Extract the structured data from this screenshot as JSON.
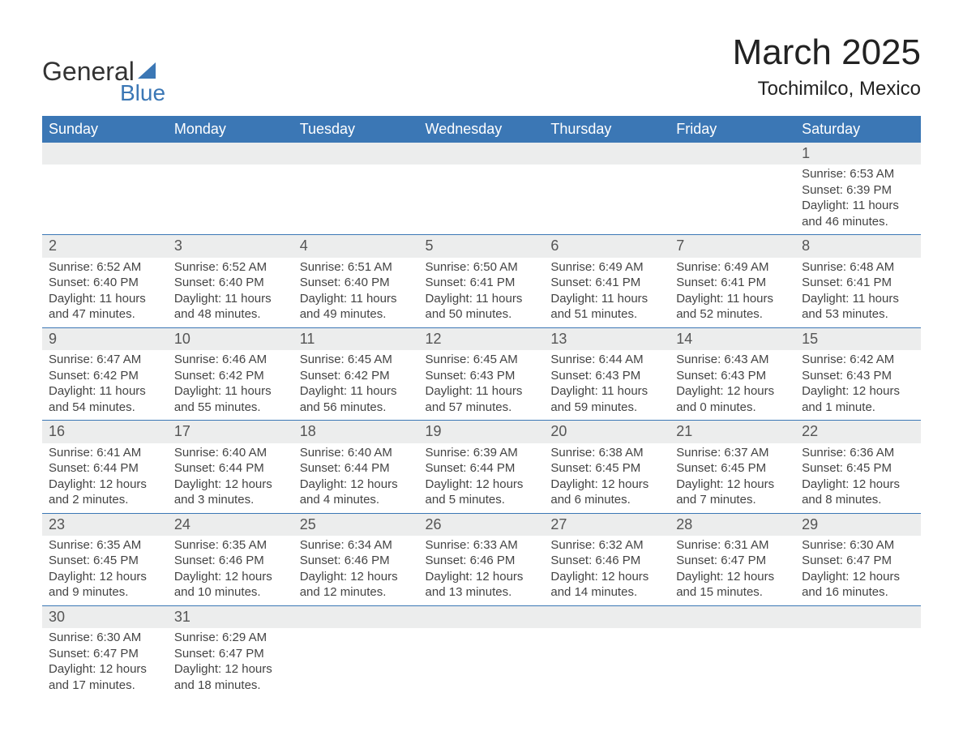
{
  "brand": {
    "word1": "General",
    "word2": "Blue",
    "sail_color": "#3b77b5"
  },
  "title": "March 2025",
  "location": "Tochimilco, Mexico",
  "colors": {
    "header_bg": "#3b77b5",
    "header_text": "#ffffff",
    "daynum_bg": "#eceded",
    "row_border": "#3b77b5",
    "body_text": "#444444",
    "background": "#ffffff"
  },
  "fonts": {
    "title_pt": 44,
    "location_pt": 24,
    "th_pt": 18,
    "body_pt": 15
  },
  "weekdays": [
    "Sunday",
    "Monday",
    "Tuesday",
    "Wednesday",
    "Thursday",
    "Friday",
    "Saturday"
  ],
  "weeks": [
    [
      null,
      null,
      null,
      null,
      null,
      null,
      {
        "n": "1",
        "sr": "Sunrise: 6:53 AM",
        "ss": "Sunset: 6:39 PM",
        "d1": "Daylight: 11 hours",
        "d2": "and 46 minutes."
      }
    ],
    [
      {
        "n": "2",
        "sr": "Sunrise: 6:52 AM",
        "ss": "Sunset: 6:40 PM",
        "d1": "Daylight: 11 hours",
        "d2": "and 47 minutes."
      },
      {
        "n": "3",
        "sr": "Sunrise: 6:52 AM",
        "ss": "Sunset: 6:40 PM",
        "d1": "Daylight: 11 hours",
        "d2": "and 48 minutes."
      },
      {
        "n": "4",
        "sr": "Sunrise: 6:51 AM",
        "ss": "Sunset: 6:40 PM",
        "d1": "Daylight: 11 hours",
        "d2": "and 49 minutes."
      },
      {
        "n": "5",
        "sr": "Sunrise: 6:50 AM",
        "ss": "Sunset: 6:41 PM",
        "d1": "Daylight: 11 hours",
        "d2": "and 50 minutes."
      },
      {
        "n": "6",
        "sr": "Sunrise: 6:49 AM",
        "ss": "Sunset: 6:41 PM",
        "d1": "Daylight: 11 hours",
        "d2": "and 51 minutes."
      },
      {
        "n": "7",
        "sr": "Sunrise: 6:49 AM",
        "ss": "Sunset: 6:41 PM",
        "d1": "Daylight: 11 hours",
        "d2": "and 52 minutes."
      },
      {
        "n": "8",
        "sr": "Sunrise: 6:48 AM",
        "ss": "Sunset: 6:41 PM",
        "d1": "Daylight: 11 hours",
        "d2": "and 53 minutes."
      }
    ],
    [
      {
        "n": "9",
        "sr": "Sunrise: 6:47 AM",
        "ss": "Sunset: 6:42 PM",
        "d1": "Daylight: 11 hours",
        "d2": "and 54 minutes."
      },
      {
        "n": "10",
        "sr": "Sunrise: 6:46 AM",
        "ss": "Sunset: 6:42 PM",
        "d1": "Daylight: 11 hours",
        "d2": "and 55 minutes."
      },
      {
        "n": "11",
        "sr": "Sunrise: 6:45 AM",
        "ss": "Sunset: 6:42 PM",
        "d1": "Daylight: 11 hours",
        "d2": "and 56 minutes."
      },
      {
        "n": "12",
        "sr": "Sunrise: 6:45 AM",
        "ss": "Sunset: 6:43 PM",
        "d1": "Daylight: 11 hours",
        "d2": "and 57 minutes."
      },
      {
        "n": "13",
        "sr": "Sunrise: 6:44 AM",
        "ss": "Sunset: 6:43 PM",
        "d1": "Daylight: 11 hours",
        "d2": "and 59 minutes."
      },
      {
        "n": "14",
        "sr": "Sunrise: 6:43 AM",
        "ss": "Sunset: 6:43 PM",
        "d1": "Daylight: 12 hours",
        "d2": "and 0 minutes."
      },
      {
        "n": "15",
        "sr": "Sunrise: 6:42 AM",
        "ss": "Sunset: 6:43 PM",
        "d1": "Daylight: 12 hours",
        "d2": "and 1 minute."
      }
    ],
    [
      {
        "n": "16",
        "sr": "Sunrise: 6:41 AM",
        "ss": "Sunset: 6:44 PM",
        "d1": "Daylight: 12 hours",
        "d2": "and 2 minutes."
      },
      {
        "n": "17",
        "sr": "Sunrise: 6:40 AM",
        "ss": "Sunset: 6:44 PM",
        "d1": "Daylight: 12 hours",
        "d2": "and 3 minutes."
      },
      {
        "n": "18",
        "sr": "Sunrise: 6:40 AM",
        "ss": "Sunset: 6:44 PM",
        "d1": "Daylight: 12 hours",
        "d2": "and 4 minutes."
      },
      {
        "n": "19",
        "sr": "Sunrise: 6:39 AM",
        "ss": "Sunset: 6:44 PM",
        "d1": "Daylight: 12 hours",
        "d2": "and 5 minutes."
      },
      {
        "n": "20",
        "sr": "Sunrise: 6:38 AM",
        "ss": "Sunset: 6:45 PM",
        "d1": "Daylight: 12 hours",
        "d2": "and 6 minutes."
      },
      {
        "n": "21",
        "sr": "Sunrise: 6:37 AM",
        "ss": "Sunset: 6:45 PM",
        "d1": "Daylight: 12 hours",
        "d2": "and 7 minutes."
      },
      {
        "n": "22",
        "sr": "Sunrise: 6:36 AM",
        "ss": "Sunset: 6:45 PM",
        "d1": "Daylight: 12 hours",
        "d2": "and 8 minutes."
      }
    ],
    [
      {
        "n": "23",
        "sr": "Sunrise: 6:35 AM",
        "ss": "Sunset: 6:45 PM",
        "d1": "Daylight: 12 hours",
        "d2": "and 9 minutes."
      },
      {
        "n": "24",
        "sr": "Sunrise: 6:35 AM",
        "ss": "Sunset: 6:46 PM",
        "d1": "Daylight: 12 hours",
        "d2": "and 10 minutes."
      },
      {
        "n": "25",
        "sr": "Sunrise: 6:34 AM",
        "ss": "Sunset: 6:46 PM",
        "d1": "Daylight: 12 hours",
        "d2": "and 12 minutes."
      },
      {
        "n": "26",
        "sr": "Sunrise: 6:33 AM",
        "ss": "Sunset: 6:46 PM",
        "d1": "Daylight: 12 hours",
        "d2": "and 13 minutes."
      },
      {
        "n": "27",
        "sr": "Sunrise: 6:32 AM",
        "ss": "Sunset: 6:46 PM",
        "d1": "Daylight: 12 hours",
        "d2": "and 14 minutes."
      },
      {
        "n": "28",
        "sr": "Sunrise: 6:31 AM",
        "ss": "Sunset: 6:47 PM",
        "d1": "Daylight: 12 hours",
        "d2": "and 15 minutes."
      },
      {
        "n": "29",
        "sr": "Sunrise: 6:30 AM",
        "ss": "Sunset: 6:47 PM",
        "d1": "Daylight: 12 hours",
        "d2": "and 16 minutes."
      }
    ],
    [
      {
        "n": "30",
        "sr": "Sunrise: 6:30 AM",
        "ss": "Sunset: 6:47 PM",
        "d1": "Daylight: 12 hours",
        "d2": "and 17 minutes."
      },
      {
        "n": "31",
        "sr": "Sunrise: 6:29 AM",
        "ss": "Sunset: 6:47 PM",
        "d1": "Daylight: 12 hours",
        "d2": "and 18 minutes."
      },
      null,
      null,
      null,
      null,
      null
    ]
  ]
}
